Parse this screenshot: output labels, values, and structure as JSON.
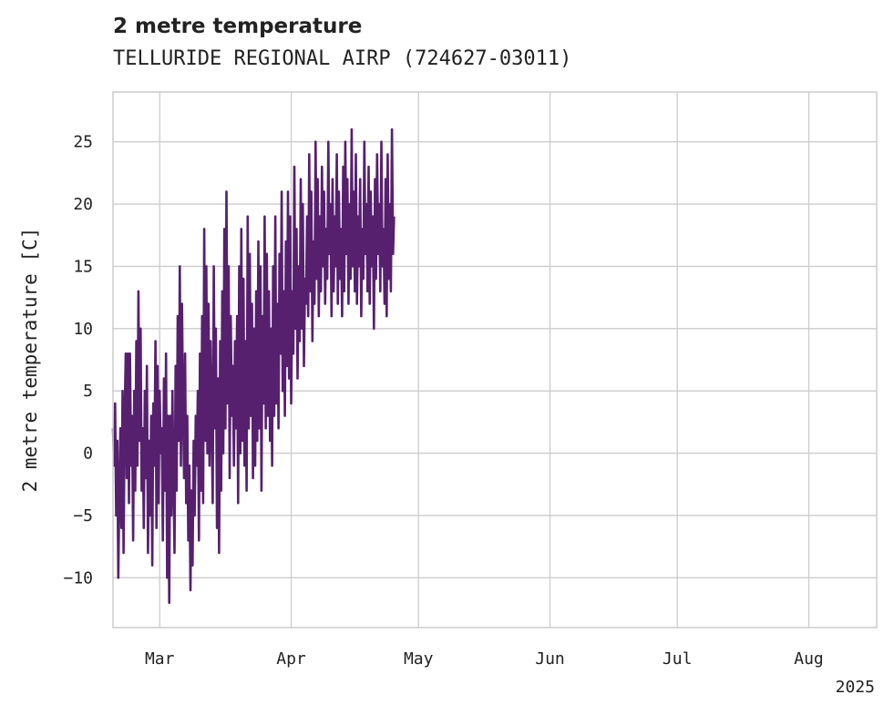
{
  "chart_data": {
    "type": "line",
    "title": "2 metre temperature",
    "subtitle": "TELLURIDE REGIONAL AIRP (724627-03011)",
    "ylabel": "2 metre temperature [C]",
    "xlabel": "",
    "year_label": "2025",
    "ylim": [
      -14,
      29
    ],
    "xlim": [
      "2025-02-18",
      "2025-08-17"
    ],
    "y_ticks": [
      -10,
      -5,
      0,
      5,
      10,
      15,
      20,
      25
    ],
    "x_ticks": [
      {
        "date": "2025-03-01",
        "label": "Mar"
      },
      {
        "date": "2025-04-01",
        "label": "Apr"
      },
      {
        "date": "2025-05-01",
        "label": "May"
      },
      {
        "date": "2025-06-01",
        "label": "Jun"
      },
      {
        "date": "2025-07-01",
        "label": "Jul"
      },
      {
        "date": "2025-08-01",
        "label": "Aug"
      }
    ],
    "grid": true,
    "line_color": "#56206f",
    "series": [
      {
        "start": "2025-02-18T00:00",
        "step_hours": 6,
        "values": [
          2,
          -1,
          4,
          -5,
          1,
          -10,
          -3,
          2,
          -6,
          5,
          -8,
          3,
          8,
          -2,
          8,
          -4,
          8,
          -1,
          3,
          -7,
          5,
          -3,
          9,
          -1,
          13,
          1,
          10,
          -3,
          2,
          -6,
          5,
          -2,
          7,
          -8,
          1,
          -5,
          3,
          -9,
          4,
          -1,
          9,
          -6,
          7,
          -4,
          5,
          0,
          2,
          -7,
          6,
          -3,
          8,
          -10,
          3,
          -12,
          3,
          -5,
          5,
          -2,
          -8,
          7,
          -3,
          11,
          1,
          15,
          -1,
          12,
          4,
          -2,
          8,
          -4,
          3,
          -7,
          -1,
          -11,
          -3,
          -9,
          1,
          -5,
          3,
          -1,
          5,
          -7,
          8,
          -3,
          11,
          -4,
          18,
          1,
          15,
          0,
          12,
          -1,
          9,
          3,
          -4,
          15,
          2,
          10,
          -6,
          6,
          -8,
          9,
          -3,
          13,
          0,
          18,
          2,
          21,
          4,
          15,
          -2,
          11,
          3,
          7,
          -1,
          9,
          2,
          11,
          -4,
          15,
          0,
          18,
          1,
          14,
          -1,
          9,
          -3,
          19,
          2,
          16,
          3,
          12,
          -2,
          10,
          -1,
          13,
          1,
          17,
          2,
          15,
          -3,
          11,
          4,
          19,
          2,
          16,
          3,
          13,
          1,
          10,
          -1,
          15,
          3,
          19,
          4,
          12,
          2,
          16,
          8,
          21,
          5,
          13,
          3,
          17,
          7,
          21,
          6,
          19,
          4,
          13,
          8,
          23,
          10,
          18,
          6,
          15,
          9,
          22,
          10,
          20,
          7,
          14,
          12,
          19,
          11,
          24,
          13,
          21,
          9,
          17,
          12,
          25,
          14,
          22,
          11,
          19,
          13,
          23,
          15,
          21,
          12,
          18,
          14,
          25,
          16,
          20,
          11,
          22,
          13,
          19,
          15,
          24,
          12,
          21,
          14,
          18,
          11,
          23,
          13,
          25,
          16,
          22,
          12,
          20,
          14,
          26,
          15,
          21,
          13,
          24,
          12,
          19,
          15,
          22,
          11,
          18,
          14,
          25,
          16,
          20,
          13,
          23,
          12,
          21,
          15,
          19,
          10,
          22,
          14,
          24,
          16,
          20,
          13,
          25,
          15,
          18,
          12,
          22,
          11,
          24,
          14,
          20,
          13,
          26,
          16,
          19
        ]
      }
    ]
  }
}
